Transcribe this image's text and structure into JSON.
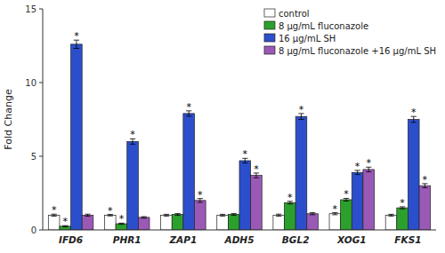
{
  "chart_data": {
    "type": "bar",
    "categories": [
      "IFD6",
      "PHR1",
      "ZAP1",
      "ADH5",
      "BGL2",
      "XOG1",
      "FKS1"
    ],
    "ylabel": "Fold Change",
    "ylim": [
      0,
      15
    ],
    "yticks": [
      0,
      5,
      10,
      15
    ],
    "grid": false,
    "legend": "upper right",
    "series": [
      {
        "name": "control",
        "color": "#ffffff",
        "values": [
          1.0,
          1.0,
          1.0,
          1.0,
          1.0,
          1.1,
          1.0
        ],
        "errors": [
          0.07,
          0.05,
          0.06,
          0.06,
          0.07,
          0.07,
          0.06
        ],
        "annotations": [
          "*",
          "*",
          null,
          null,
          null,
          "*",
          null
        ]
      },
      {
        "name": "8 μg/mL fluconazole",
        "color": "#2ca02c",
        "values": [
          0.25,
          0.42,
          1.05,
          1.05,
          1.85,
          2.05,
          1.5
        ],
        "errors": [
          0.04,
          0.04,
          0.06,
          0.06,
          0.09,
          0.09,
          0.07
        ],
        "annotations": [
          "*",
          "*",
          null,
          null,
          "*",
          "*",
          "*"
        ]
      },
      {
        "name": "16 μg/mL SH",
        "color": "#2b4fcc",
        "values": [
          12.6,
          6.0,
          7.9,
          4.7,
          7.7,
          3.9,
          7.5
        ],
        "errors": [
          0.28,
          0.18,
          0.18,
          0.16,
          0.2,
          0.14,
          0.2
        ],
        "annotations": [
          "*",
          "*",
          "*",
          "*",
          "*",
          "*",
          "*"
        ]
      },
      {
        "name": "8 μg/mL fluconazole +16 μg/mL SH",
        "color": "#9b59b6",
        "values": [
          1.0,
          0.85,
          2.0,
          3.7,
          1.1,
          4.1,
          3.0
        ],
        "errors": [
          0.07,
          0.05,
          0.13,
          0.16,
          0.07,
          0.16,
          0.14
        ],
        "annotations": [
          null,
          null,
          "*",
          "*",
          null,
          "*",
          "*"
        ]
      }
    ]
  }
}
